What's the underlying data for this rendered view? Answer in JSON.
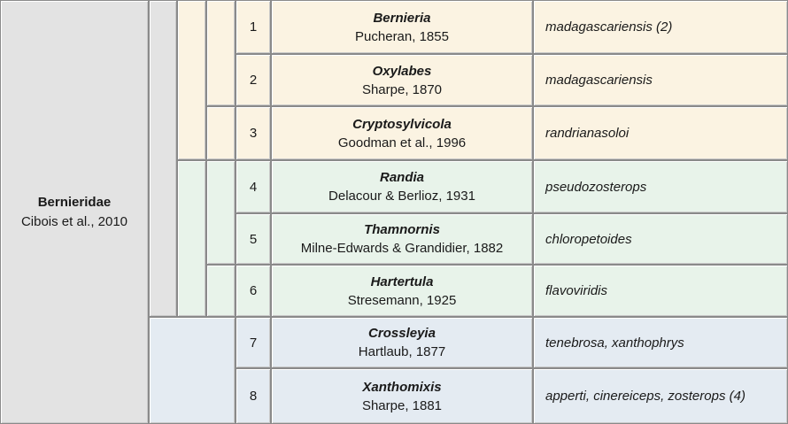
{
  "family": {
    "name": "Bernieridae",
    "authority": "Cibois et al., 2010"
  },
  "rows": [
    {
      "number": "1",
      "genus": "Bernieria",
      "authority": "Pucheran, 1855",
      "species": "madagascariensis (2)"
    },
    {
      "number": "2",
      "genus": "Oxylabes",
      "authority": "Sharpe, 1870",
      "species": "madagascariensis"
    },
    {
      "number": "3",
      "genus": "Cryptosylvicola",
      "authority": "Goodman et al., 1996",
      "species": "randrianasoloi"
    },
    {
      "number": "4",
      "genus": "Randia",
      "authority": "Delacour & Berlioz, 1931",
      "species": "pseudozosterops"
    },
    {
      "number": "5",
      "genus": "Thamnornis",
      "authority": "Milne-Edwards & Grandidier, 1882",
      "species": "chloropetoides"
    },
    {
      "number": "6",
      "genus": "Hartertula",
      "authority": "Stresemann, 1925",
      "species": "flavoviridis"
    },
    {
      "number": "7",
      "genus": "Crossleyia",
      "authority": "Hartlaub, 1877",
      "species": "tenebrosa, xanthophrys"
    },
    {
      "number": "8",
      "genus": "Xanthomixis",
      "authority": "Sharpe, 1881",
      "species": "apperti, cinereiceps, zosterops (4)"
    }
  ],
  "colors": {
    "family": "#e3e3e3",
    "clade_a": "#fbf3e2",
    "clade_b": "#e8f3ea",
    "clade_c": "#e4ebf2",
    "border": "#8a8a8a"
  }
}
